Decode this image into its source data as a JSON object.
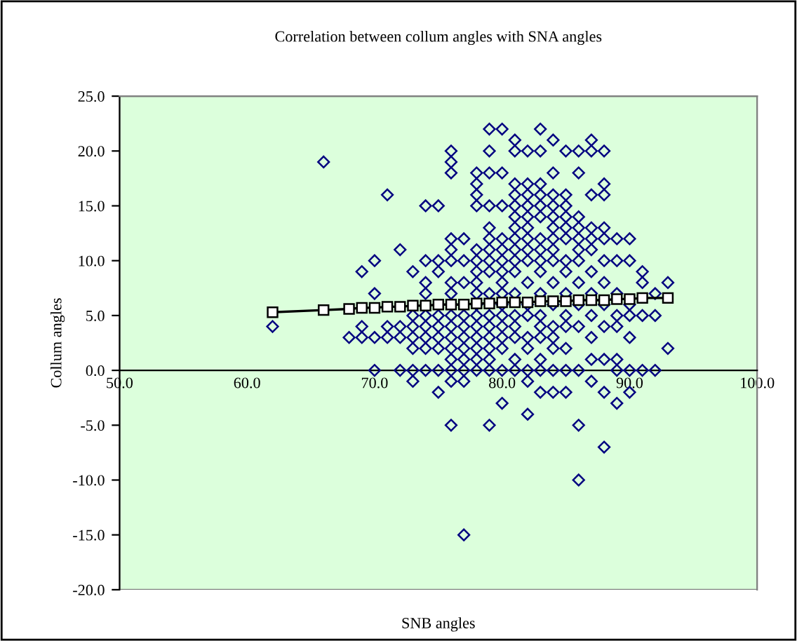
{
  "chart_data": {
    "type": "scatter",
    "title": "Correlation between collum angles with SNA angles",
    "xlabel": "SNB angles",
    "ylabel": "Collum angles",
    "xlim": [
      50,
      100
    ],
    "ylim": [
      -20,
      25
    ],
    "xticks": [
      {
        "value": 50,
        "label": "50.0"
      },
      {
        "value": 60,
        "label": "60.0"
      },
      {
        "value": 70,
        "label": "70.0"
      },
      {
        "value": 80,
        "label": "80.0"
      },
      {
        "value": 90,
        "label": "90.0"
      },
      {
        "value": 100,
        "label": "100.0"
      }
    ],
    "yticks": [
      {
        "value": -20,
        "label": "-20.0"
      },
      {
        "value": -15,
        "label": "-15.0"
      },
      {
        "value": -10,
        "label": "-10.0"
      },
      {
        "value": -5,
        "label": "-5.0"
      },
      {
        "value": 0,
        "label": "0.0"
      },
      {
        "value": 5,
        "label": "5.0"
      },
      {
        "value": 10,
        "label": "10.0"
      },
      {
        "value": 15,
        "label": "15.0"
      },
      {
        "value": 20,
        "label": "20.0"
      },
      {
        "value": 25,
        "label": "25.0"
      }
    ],
    "grid": false,
    "legend": false,
    "series": [
      {
        "marker": "diamond",
        "color": "#000080",
        "x": [
          62,
          66,
          68,
          69,
          69,
          69,
          70,
          70,
          70,
          70,
          71,
          71,
          71,
          72,
          72,
          72,
          72,
          73,
          73,
          73,
          73,
          73,
          73,
          73,
          74,
          74,
          74,
          74,
          74,
          74,
          74,
          74,
          74,
          75,
          75,
          75,
          75,
          75,
          75,
          75,
          75,
          75,
          76,
          76,
          76,
          76,
          76,
          76,
          76,
          76,
          76,
          76,
          76,
          76,
          76,
          76,
          76,
          76,
          77,
          77,
          77,
          77,
          77,
          77,
          77,
          77,
          77,
          77,
          77,
          78,
          78,
          78,
          78,
          78,
          78,
          78,
          78,
          78,
          78,
          78,
          78,
          78,
          78,
          78,
          78,
          79,
          79,
          79,
          79,
          79,
          79,
          79,
          79,
          79,
          79,
          79,
          79,
          79,
          79,
          79,
          79,
          79,
          80,
          80,
          80,
          80,
          80,
          80,
          80,
          80,
          80,
          80,
          80,
          80,
          80,
          80,
          80,
          80,
          81,
          81,
          81,
          81,
          81,
          81,
          81,
          81,
          81,
          81,
          81,
          81,
          81,
          81,
          81,
          81,
          81,
          82,
          82,
          82,
          82,
          82,
          82,
          82,
          82,
          82,
          82,
          82,
          82,
          82,
          82,
          82,
          82,
          82,
          83,
          83,
          83,
          83,
          83,
          83,
          83,
          83,
          83,
          83,
          83,
          83,
          83,
          83,
          83,
          83,
          83,
          84,
          84,
          84,
          84,
          84,
          84,
          84,
          84,
          84,
          84,
          84,
          84,
          84,
          84,
          84,
          84,
          85,
          85,
          85,
          85,
          85,
          85,
          85,
          85,
          85,
          85,
          85,
          85,
          85,
          85,
          86,
          86,
          86,
          86,
          86,
          86,
          86,
          86,
          86,
          86,
          86,
          86,
          86,
          87,
          87,
          87,
          87,
          87,
          87,
          87,
          87,
          87,
          87,
          87,
          87,
          88,
          88,
          88,
          88,
          88,
          88,
          88,
          88,
          88,
          88,
          88,
          88,
          89,
          89,
          89,
          89,
          89,
          89,
          89,
          89,
          90,
          90,
          90,
          90,
          90,
          90,
          90,
          91,
          91,
          91,
          91,
          92,
          92,
          92,
          93,
          93
        ],
        "values": [
          4,
          19,
          3,
          9,
          4,
          3,
          10,
          7,
          3,
          0,
          16,
          4,
          3,
          11,
          4,
          3,
          0,
          9,
          5,
          4,
          3,
          2,
          0,
          -1,
          15,
          10,
          8,
          7,
          5,
          4,
          3,
          2,
          0,
          15,
          10,
          9,
          5,
          4,
          3,
          2,
          0,
          -2,
          20,
          19,
          18,
          12,
          11,
          10,
          8,
          7,
          5,
          4,
          3,
          2,
          1,
          0,
          -1,
          -5,
          12,
          10,
          8,
          5,
          4,
          3,
          2,
          1,
          0,
          -1,
          -15,
          18,
          17,
          16,
          15,
          11,
          10,
          9,
          8,
          7,
          6,
          5,
          4,
          3,
          2,
          1,
          0,
          22,
          20,
          18,
          15,
          13,
          12,
          11,
          10,
          9,
          7,
          5,
          4,
          3,
          2,
          1,
          0,
          -5,
          22,
          18,
          15,
          12,
          11,
          10,
          9,
          8,
          7,
          6,
          5,
          4,
          3,
          2,
          0,
          -3,
          21,
          20,
          17,
          16,
          15,
          14,
          13,
          12,
          11,
          10,
          9,
          7,
          5,
          4,
          3,
          1,
          0,
          20,
          17,
          16,
          15,
          14,
          13,
          12,
          11,
          10,
          8,
          6,
          5,
          3,
          2,
          0,
          -1,
          -4,
          22,
          20,
          17,
          16,
          15,
          14,
          12,
          11,
          10,
          9,
          7,
          5,
          4,
          3,
          1,
          0,
          -2,
          21,
          18,
          16,
          15,
          14,
          13,
          12,
          11,
          10,
          8,
          6,
          4,
          3,
          2,
          0,
          -2,
          20,
          16,
          15,
          14,
          13,
          12,
          10,
          9,
          7,
          5,
          4,
          2,
          0,
          -2,
          20,
          18,
          14,
          13,
          12,
          11,
          10,
          8,
          6,
          4,
          0,
          -5,
          -10,
          21,
          20,
          16,
          13,
          12,
          11,
          9,
          7,
          5,
          3,
          1,
          -1,
          20,
          17,
          16,
          13,
          12,
          10,
          8,
          6,
          4,
          1,
          -2,
          -7,
          12,
          10,
          7,
          5,
          4,
          1,
          0,
          -3,
          12,
          10,
          6,
          5,
          3,
          0,
          -2,
          9,
          8,
          5,
          0,
          7,
          5,
          0,
          8,
          2
        ]
      },
      {
        "type": "line",
        "marker": "square",
        "color": "#000000",
        "x": [
          62,
          66,
          68,
          69,
          70,
          71,
          72,
          73,
          74,
          75,
          76,
          77,
          78,
          79,
          80,
          81,
          82,
          83,
          84,
          85,
          86,
          87,
          88,
          89,
          90,
          91,
          93
        ],
        "values": [
          5.3,
          5.5,
          5.6,
          5.7,
          5.7,
          5.8,
          5.8,
          5.9,
          5.9,
          6.0,
          6.0,
          6.0,
          6.1,
          6.1,
          6.2,
          6.2,
          6.2,
          6.3,
          6.3,
          6.3,
          6.4,
          6.4,
          6.4,
          6.5,
          6.5,
          6.6,
          6.6
        ]
      }
    ]
  }
}
